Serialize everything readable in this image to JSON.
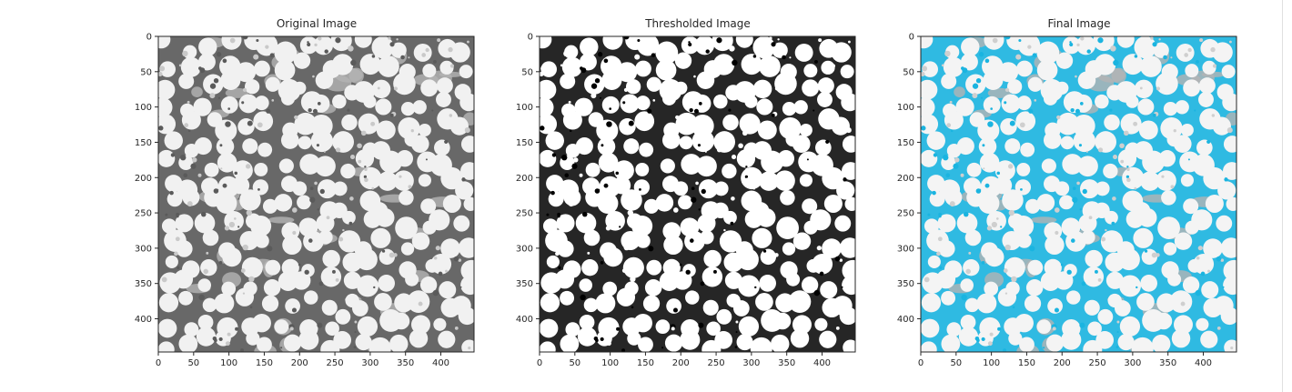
{
  "figure": {
    "panels": [
      {
        "title": "Original Image",
        "mode": "original"
      },
      {
        "title": "Thresholded Image",
        "mode": "threshold"
      },
      {
        "title": "Final Image",
        "mode": "final"
      }
    ],
    "x_ticks": [
      0,
      50,
      100,
      150,
      200,
      250,
      300,
      350,
      400
    ],
    "y_ticks": [
      0,
      50,
      100,
      150,
      200,
      250,
      300,
      350,
      400
    ],
    "extent": [
      0,
      447
    ],
    "colors": {
      "overlay": "#1ab4e0",
      "dark": "#5a5a5a",
      "black": "#000000",
      "gray": "#b4b4b4",
      "axis": "#262626"
    }
  }
}
